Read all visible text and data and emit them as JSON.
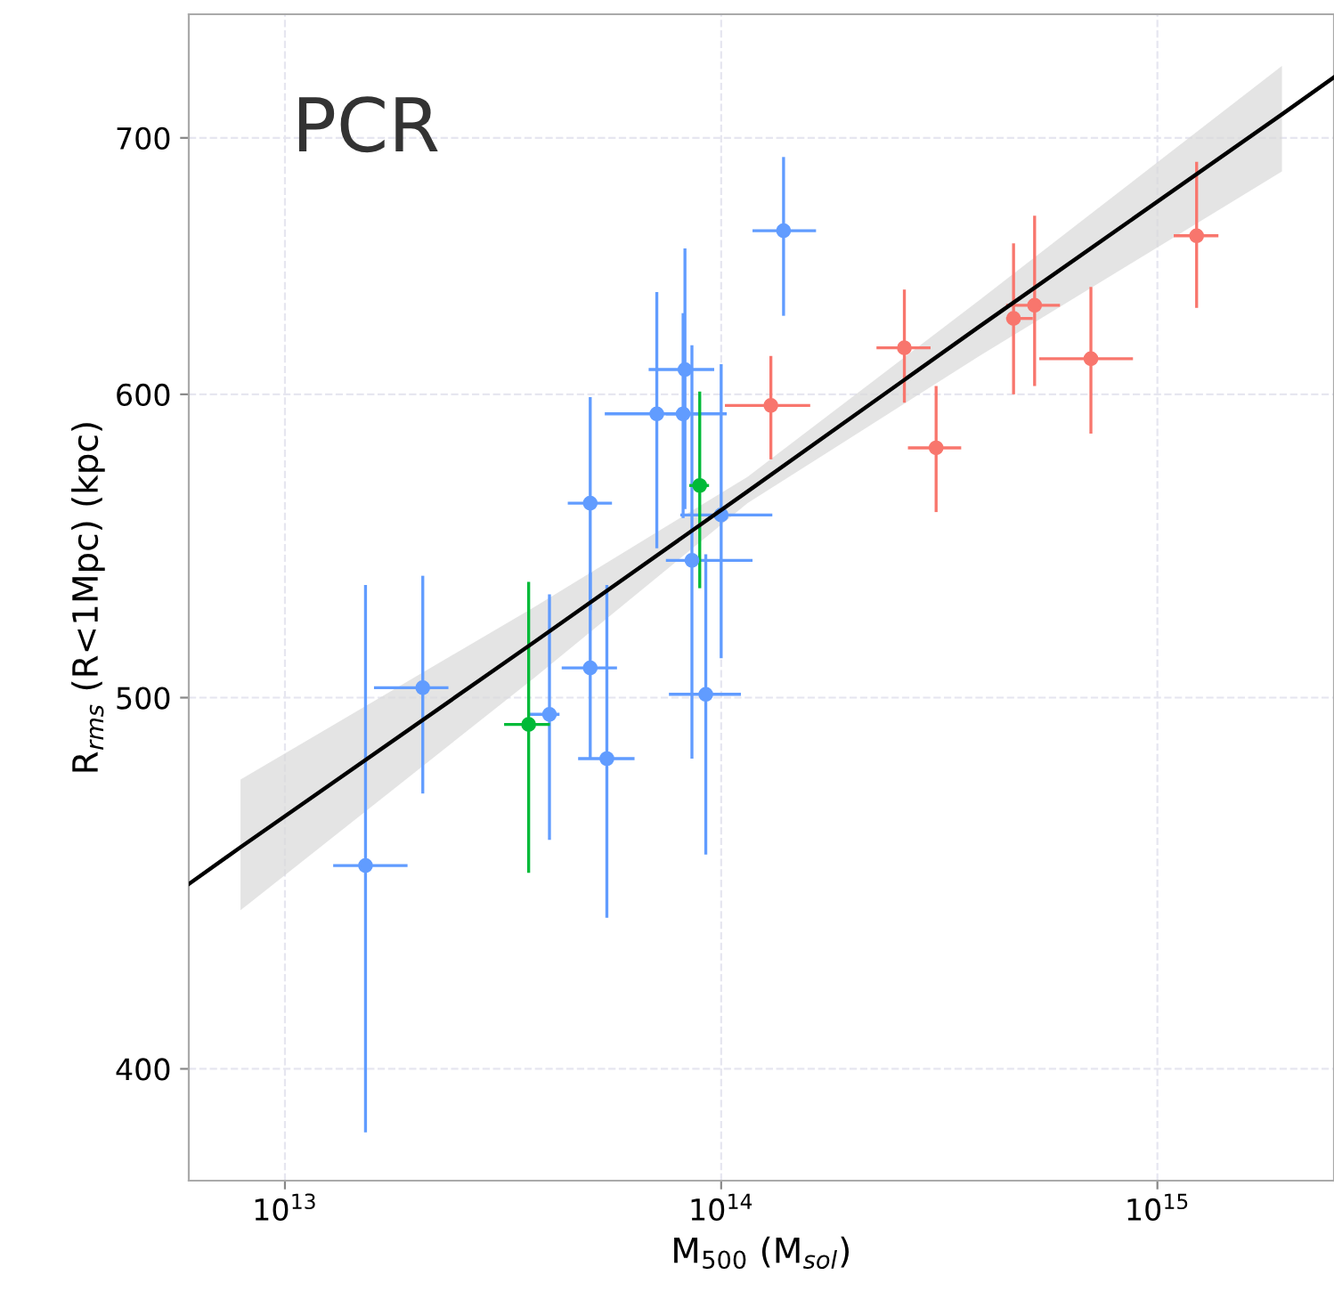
{
  "chart_data": {
    "type": "scatter",
    "xlabel": "M$_{500}$ (M$_{sol}$)",
    "ylabel": "R$_{rms}$ (R<1Mpc) (kpc)",
    "annotations": [
      "PCR"
    ],
    "log": "xy",
    "grid": true,
    "marker": "circle",
    "legend": false,
    "xlim": [
      6020000000000.0,
      2540000000000000.0
    ],
    "ylim": [
      374,
      754
    ],
    "xticks": [
      {
        "value": 10000000000000.0,
        "label": "10$^{13}$"
      },
      {
        "value": 100000000000000.0,
        "label": "10$^{14}$"
      },
      {
        "value": 1000000000000000.0,
        "label": "10$^{15}$"
      }
    ],
    "yticks": [
      400,
      500,
      600,
      700
    ],
    "series": [
      {
        "type": "line",
        "color": "#000000",
        "marker": "none",
        "x": [
          6020000000000.0,
          7910000000000.0,
          37300000000000.0,
          115000000000000.0,
          391000000000000.0,
          1930000000000000.0,
          2540000000000000.0
        ],
        "values": [
          447,
          457,
          517,
          566,
          625,
          710,
          726
        ],
        "lower": [
          null,
          440,
          506,
          562,
          614,
          686,
          null
        ],
        "upper": [
          null,
          476,
          528,
          571,
          635,
          731,
          null
        ]
      },
      {
        "color": "#619cff",
        "x": [
          15300000000000.0,
          20700000000000.0,
          40400000000000.0,
          50100000000000.0,
          50100000000000.0,
          54700000000000.0,
          71200000000000.0,
          82600000000000.0,
          81800000000000.0,
          85700000000000.0,
          92200000000000.0,
          100000000000000.0,
          139000000000000.0
        ],
        "values": [
          452,
          503,
          495,
          562,
          509,
          482,
          593,
          609,
          593,
          543,
          501,
          558,
          662
        ],
        "errors": [
          [
            385,
            535
          ],
          [
            472,
            538
          ],
          [
            459,
            532
          ],
          [
            527,
            599
          ],
          [
            482,
            539
          ],
          [
            438,
            535
          ],
          [
            547,
            638
          ],
          [
            560,
            655
          ],
          [
            557,
            630
          ],
          [
            482,
            618
          ],
          [
            455,
            545
          ],
          [
            512,
            611
          ],
          [
            629,
            692
          ]
        ],
        "xerrors": [
          [
            12900000000000.0,
            19100000000000.0
          ],
          [
            16000000000000.0,
            23700000000000.0
          ],
          [
            36000000000000.0,
            42600000000000.0
          ],
          [
            44500000000000.0,
            56200000000000.0
          ],
          [
            43100000000000.0,
            57700000000000.0
          ],
          [
            47000000000000.0,
            63300000000000.0
          ],
          [
            54100000000000.0,
            103000000000000.0
          ],
          [
            68200000000000.0,
            96400000000000.0
          ],
          [
            74700000000000.0,
            89300000000000.0
          ],
          [
            74700000000000.0,
            118000000000000.0
          ],
          [
            75900000000000.0,
            111000000000000.0
          ],
          [
            80600000000000.0,
            131000000000000.0
          ],
          [
            118000000000000.0,
            165000000000000.0
          ]
        ]
      },
      {
        "color": "#00ba38",
        "x": [
          36200000000000.0,
          89300000000000.0
        ],
        "values": [
          492,
          568
        ],
        "errors": [
          [
            450,
            536
          ],
          [
            534,
            601
          ]
        ],
        "xerrors": [
          [
            31800000000000.0,
            40500000000000.0
          ],
          [
            84500000000000.0,
            93800000000000.0
          ]
        ]
      },
      {
        "color": "#f8766d",
        "x": [
          130000000000000.0,
          263000000000000.0,
          311000000000000.0,
          468000000000000.0,
          523000000000000.0,
          704000000000000.0,
          1230000000000000.0
        ],
        "values": [
          596,
          617,
          581,
          628,
          633,
          613,
          660
        ],
        "errors": [
          [
            577,
            614
          ],
          [
            597,
            639
          ],
          [
            559,
            603
          ],
          [
            600,
            657
          ],
          [
            603,
            668
          ],
          [
            586,
            640
          ],
          [
            632,
            690
          ]
        ],
        "xerrors": [
          [
            102000000000000.0,
            160000000000000.0
          ],
          [
            227000000000000.0,
            302000000000000.0
          ],
          [
            268000000000000.0,
            355000000000000.0
          ],
          [
            450000000000000.0,
            518000000000000.0
          ],
          [
            450000000000000.0,
            598000000000000.0
          ],
          [
            536000000000000.0,
            879000000000000.0
          ],
          [
            1090000000000000.0,
            1380000000000000.0
          ]
        ]
      }
    ]
  }
}
